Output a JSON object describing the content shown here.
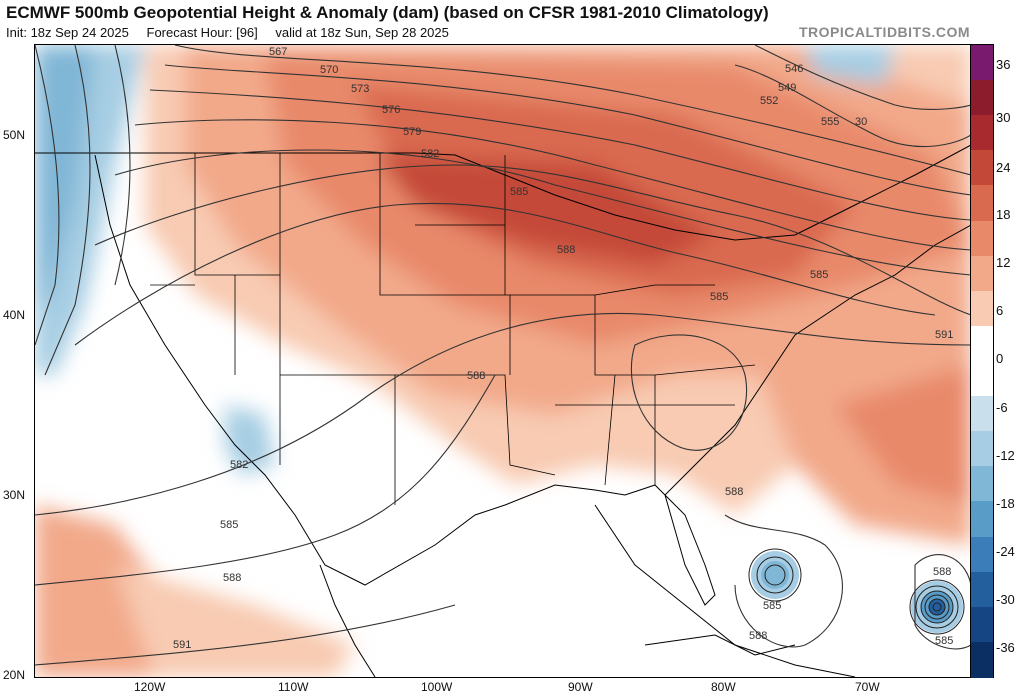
{
  "header": {
    "title": "ECMWF 500mb Geopotential Height & Anomaly (dam) (based on CFSR 1981-2010 Climatology)",
    "init": "Init: 18z Sep 24 2025",
    "forecast_hour": "Forecast Hour: [96]",
    "valid": "valid at 18z Sun, Sep 28 2025",
    "brand": "TROPICALTIDBITS.COM"
  },
  "axes": {
    "lat_labels": [
      "50N",
      "40N",
      "30N",
      "20N"
    ],
    "lon_labels": [
      "120W",
      "110W",
      "100W",
      "90W",
      "80W",
      "70W"
    ]
  },
  "colorbar": {
    "labels": [
      "36",
      "30",
      "24",
      "18",
      "12",
      "6",
      "0",
      "-6",
      "-12",
      "-18",
      "-24",
      "-30",
      "-36"
    ],
    "colors": [
      "#7a1a6e",
      "#8c1b2b",
      "#a82a2f",
      "#c44838",
      "#d9694f",
      "#e8896a",
      "#f2a98a",
      "#f8cbb2",
      "#ffffff",
      "#ffffff",
      "#c9dfec",
      "#a6cde3",
      "#80b6d6",
      "#5a9cc8",
      "#3a7db8",
      "#225f9c",
      "#154583",
      "#0c2f63"
    ]
  },
  "contour_labels": [
    "567",
    "570",
    "573",
    "576",
    "579",
    "582",
    "585",
    "588",
    "585",
    "585",
    "591",
    "588",
    "582",
    "585",
    "588",
    "591",
    "546",
    "549",
    "552",
    "555",
    "30",
    "588",
    "585",
    "585",
    "588",
    "588",
    "585"
  ]
}
